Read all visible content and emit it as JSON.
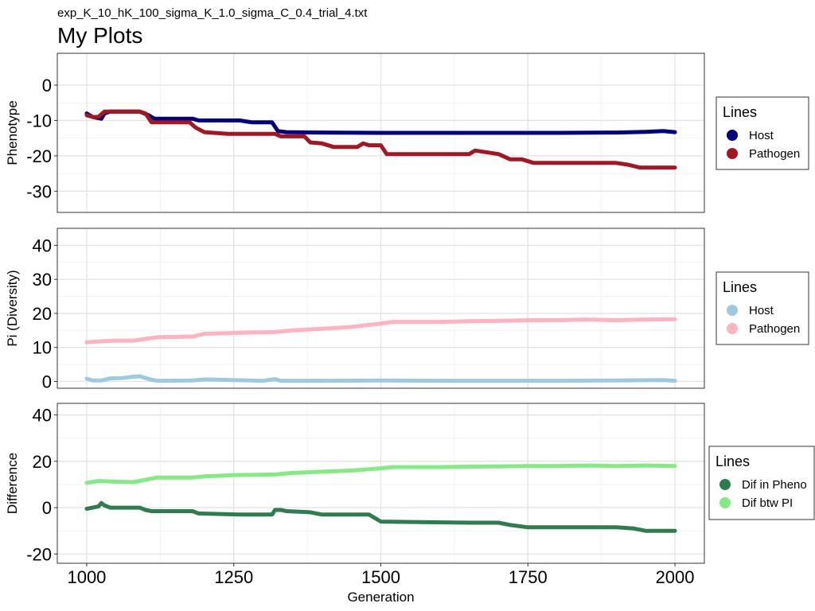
{
  "header": {
    "subtitle": "exp_K_10_hK_100_sigma_K_1.0_sigma_C_0.4_trial_4.txt",
    "title": "My Plots"
  },
  "chart_data": [
    {
      "type": "line",
      "title": "",
      "xlabel": "",
      "ylabel": "Phenotype",
      "xlim": [
        1000,
        2000
      ],
      "ylim": [
        -36,
        9
      ],
      "y_ticks": [
        0,
        -10,
        -20,
        -30
      ],
      "y_tick_labels": [
        "0",
        "-10",
        "-20",
        "-30"
      ],
      "grid": true,
      "legend": {
        "title": "Lines",
        "placement": "right"
      },
      "series": [
        {
          "name": "Host",
          "color": "#000080",
          "points": [
            [
              1000,
              -8
            ],
            [
              1010,
              -9
            ],
            [
              1025,
              -9.5
            ],
            [
              1030,
              -8
            ],
            [
              1040,
              -7.5
            ],
            [
              1060,
              -7.5
            ],
            [
              1090,
              -7.5
            ],
            [
              1105,
              -8.5
            ],
            [
              1115,
              -9.5
            ],
            [
              1180,
              -9.5
            ],
            [
              1190,
              -10
            ],
            [
              1260,
              -10
            ],
            [
              1280,
              -10.5
            ],
            [
              1315,
              -10.5
            ],
            [
              1325,
              -13
            ],
            [
              1340,
              -13.3
            ],
            [
              1400,
              -13.4
            ],
            [
              1500,
              -13.5
            ],
            [
              1600,
              -13.5
            ],
            [
              1700,
              -13.5
            ],
            [
              1800,
              -13.5
            ],
            [
              1900,
              -13.4
            ],
            [
              1950,
              -13.2
            ],
            [
              1980,
              -13
            ],
            [
              2000,
              -13.3
            ]
          ]
        },
        {
          "name": "Pathogen",
          "color": "#A31622",
          "points": [
            [
              1000,
              -8.5
            ],
            [
              1010,
              -9
            ],
            [
              1020,
              -9
            ],
            [
              1030,
              -7.5
            ],
            [
              1060,
              -7.5
            ],
            [
              1090,
              -7.5
            ],
            [
              1100,
              -8
            ],
            [
              1110,
              -10.5
            ],
            [
              1175,
              -10.5
            ],
            [
              1185,
              -12
            ],
            [
              1200,
              -13.3
            ],
            [
              1240,
              -13.8
            ],
            [
              1320,
              -13.8
            ],
            [
              1330,
              -14.5
            ],
            [
              1370,
              -14.5
            ],
            [
              1380,
              -16.2
            ],
            [
              1400,
              -16.5
            ],
            [
              1420,
              -17.5
            ],
            [
              1460,
              -17.5
            ],
            [
              1470,
              -16.5
            ],
            [
              1480,
              -17
            ],
            [
              1500,
              -17
            ],
            [
              1510,
              -19.5
            ],
            [
              1650,
              -19.5
            ],
            [
              1660,
              -18.5
            ],
            [
              1700,
              -19.5
            ],
            [
              1720,
              -21
            ],
            [
              1740,
              -21
            ],
            [
              1760,
              -22
            ],
            [
              1850,
              -22
            ],
            [
              1870,
              -22
            ],
            [
              1900,
              -22
            ],
            [
              1920,
              -22.5
            ],
            [
              1940,
              -23.3
            ],
            [
              2000,
              -23.3
            ]
          ]
        }
      ]
    },
    {
      "type": "line",
      "title": "",
      "xlabel": "",
      "ylabel": "Pi (Diversity)",
      "xlim": [
        1000,
        2000
      ],
      "ylim": [
        -2,
        45
      ],
      "y_ticks": [
        0,
        10,
        20,
        30,
        40
      ],
      "y_tick_labels": [
        "0",
        "10",
        "20",
        "30",
        "40"
      ],
      "grid": true,
      "legend": {
        "title": "Lines",
        "placement": "right"
      },
      "series": [
        {
          "name": "Host",
          "color": "#9ECAE1",
          "points": [
            [
              1000,
              0.8
            ],
            [
              1010,
              0.3
            ],
            [
              1025,
              0.3
            ],
            [
              1040,
              0.9
            ],
            [
              1060,
              1.0
            ],
            [
              1080,
              1.4
            ],
            [
              1090,
              1.5
            ],
            [
              1100,
              1.0
            ],
            [
              1110,
              0.5
            ],
            [
              1120,
              0.2
            ],
            [
              1180,
              0.3
            ],
            [
              1200,
              0.6
            ],
            [
              1250,
              0.4
            ],
            [
              1300,
              0.2
            ],
            [
              1320,
              0.7
            ],
            [
              1330,
              0.2
            ],
            [
              1400,
              0.2
            ],
            [
              1500,
              0.3
            ],
            [
              1600,
              0.2
            ],
            [
              1700,
              0.2
            ],
            [
              1800,
              0.2
            ],
            [
              1900,
              0.3
            ],
            [
              1980,
              0.4
            ],
            [
              2000,
              0.2
            ]
          ]
        },
        {
          "name": "Pathogen",
          "color": "#FFB2C1",
          "points": [
            [
              1000,
              11.5
            ],
            [
              1025,
              11.8
            ],
            [
              1050,
              12
            ],
            [
              1080,
              12
            ],
            [
              1100,
              12.5
            ],
            [
              1120,
              13
            ],
            [
              1180,
              13.2
            ],
            [
              1200,
              14
            ],
            [
              1260,
              14.3
            ],
            [
              1320,
              14.5
            ],
            [
              1350,
              15
            ],
            [
              1400,
              15.5
            ],
            [
              1450,
              16
            ],
            [
              1500,
              17
            ],
            [
              1520,
              17.5
            ],
            [
              1600,
              17.5
            ],
            [
              1650,
              17.7
            ],
            [
              1700,
              17.8
            ],
            [
              1750,
              18
            ],
            [
              1800,
              18
            ],
            [
              1850,
              18.2
            ],
            [
              1900,
              18
            ],
            [
              1950,
              18.2
            ],
            [
              2000,
              18.3
            ]
          ]
        }
      ]
    },
    {
      "type": "line",
      "title": "",
      "xlabel": "Generation",
      "ylabel": "Difference",
      "xlim": [
        1000,
        2000
      ],
      "ylim": [
        -24,
        45
      ],
      "x_ticks": [
        1000,
        1250,
        1500,
        1750,
        2000
      ],
      "x_tick_labels": [
        "1000",
        "1250",
        "1500",
        "1750",
        "2000"
      ],
      "y_ticks": [
        40,
        20,
        0,
        -20
      ],
      "y_tick_labels": [
        "40",
        "20",
        "0",
        "-20"
      ],
      "grid": true,
      "legend": {
        "title": "Lines",
        "placement": "right"
      },
      "series": [
        {
          "name": "Dif in Pheno",
          "color": "#2E7D4F",
          "points": [
            [
              1000,
              -0.5
            ],
            [
              1010,
              0
            ],
            [
              1020,
              0.5
            ],
            [
              1025,
              2
            ],
            [
              1030,
              1
            ],
            [
              1040,
              0
            ],
            [
              1090,
              0
            ],
            [
              1100,
              -1
            ],
            [
              1110,
              -1.5
            ],
            [
              1180,
              -1.5
            ],
            [
              1190,
              -2.5
            ],
            [
              1260,
              -3
            ],
            [
              1315,
              -3
            ],
            [
              1320,
              -1
            ],
            [
              1330,
              -1
            ],
            [
              1340,
              -1.5
            ],
            [
              1380,
              -2
            ],
            [
              1400,
              -3
            ],
            [
              1480,
              -3
            ],
            [
              1500,
              -6
            ],
            [
              1650,
              -6.5
            ],
            [
              1700,
              -6.5
            ],
            [
              1720,
              -7.5
            ],
            [
              1750,
              -8.5
            ],
            [
              1850,
              -8.5
            ],
            [
              1900,
              -8.5
            ],
            [
              1930,
              -9
            ],
            [
              1950,
              -10
            ],
            [
              2000,
              -10
            ]
          ]
        },
        {
          "name": "Dif btw PI",
          "color": "#84EB84",
          "points": [
            [
              1000,
              10.7
            ],
            [
              1020,
              11.5
            ],
            [
              1050,
              11.2
            ],
            [
              1080,
              11
            ],
            [
              1100,
              12
            ],
            [
              1120,
              13
            ],
            [
              1180,
              13
            ],
            [
              1200,
              13.5
            ],
            [
              1250,
              14
            ],
            [
              1320,
              14.3
            ],
            [
              1350,
              15
            ],
            [
              1400,
              15.5
            ],
            [
              1450,
              16
            ],
            [
              1500,
              17
            ],
            [
              1520,
              17.5
            ],
            [
              1600,
              17.5
            ],
            [
              1650,
              17.7
            ],
            [
              1700,
              17.8
            ],
            [
              1750,
              18
            ],
            [
              1800,
              18
            ],
            [
              1850,
              18.2
            ],
            [
              1900,
              18
            ],
            [
              1950,
              18.2
            ],
            [
              2000,
              18
            ]
          ]
        }
      ]
    }
  ]
}
